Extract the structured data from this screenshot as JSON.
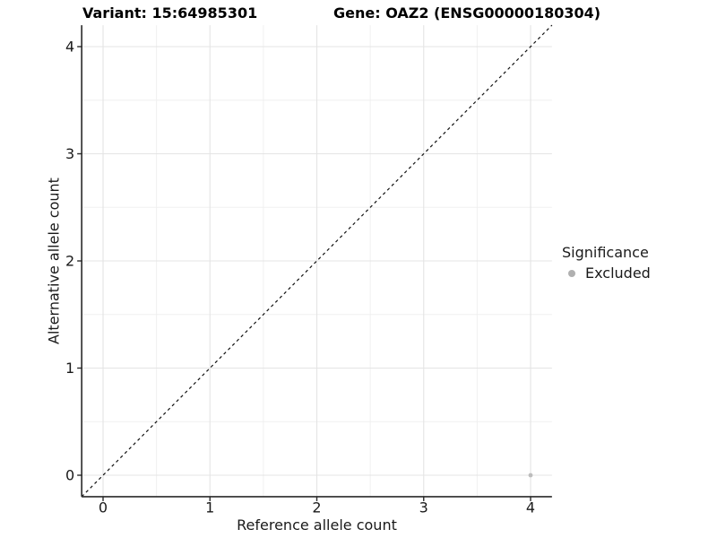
{
  "figure": {
    "title_variant": "Variant: 15:64985301",
    "title_gene": "Gene: OAZ2 (ENSG00000180304)"
  },
  "axes": {
    "x_title": "Reference allele count",
    "y_title": "Alternative allele count",
    "x_tick_labels": [
      "0",
      "1",
      "2",
      "3",
      "4"
    ],
    "y_tick_labels": [
      "0",
      "1",
      "2",
      "3",
      "4"
    ]
  },
  "legend": {
    "title": "Significance",
    "items": [
      {
        "label": "Excluded",
        "color": "#b0b0b0",
        "marker": "circle-icon"
      }
    ]
  },
  "chart_data": {
    "type": "scatter",
    "title": "Variant: 15:64985301   Gene: OAZ2 (ENSG00000180304)",
    "xlabel": "Reference allele count",
    "ylabel": "Alternative allele count",
    "xlim": [
      -0.2,
      4.2
    ],
    "ylim": [
      -0.2,
      4.2
    ],
    "x_ticks": [
      0,
      1,
      2,
      3,
      4
    ],
    "y_ticks": [
      0,
      1,
      2,
      3,
      4
    ],
    "minor_gridlines": [
      0.5,
      1.5,
      2.5,
      3.5
    ],
    "grid": "major and minor, light gray on white",
    "legend_position": "right",
    "series": [
      {
        "name": "Excluded",
        "color": "#bdbdbd",
        "points": [
          [
            4,
            0
          ]
        ]
      }
    ],
    "reference_line": {
      "kind": "identity y=x",
      "style": "dashed",
      "color": "#111111"
    }
  },
  "style": {
    "axis_line_color": "#2a2a2a",
    "grid_major_color": "#e4e4e4",
    "grid_minor_color": "#f0f0f0",
    "tick_color": "#2a2a2a",
    "text_color": "#1a1a1a",
    "point_color": "#bdbdbd",
    "legend_point_color": "#b0b0b0"
  }
}
